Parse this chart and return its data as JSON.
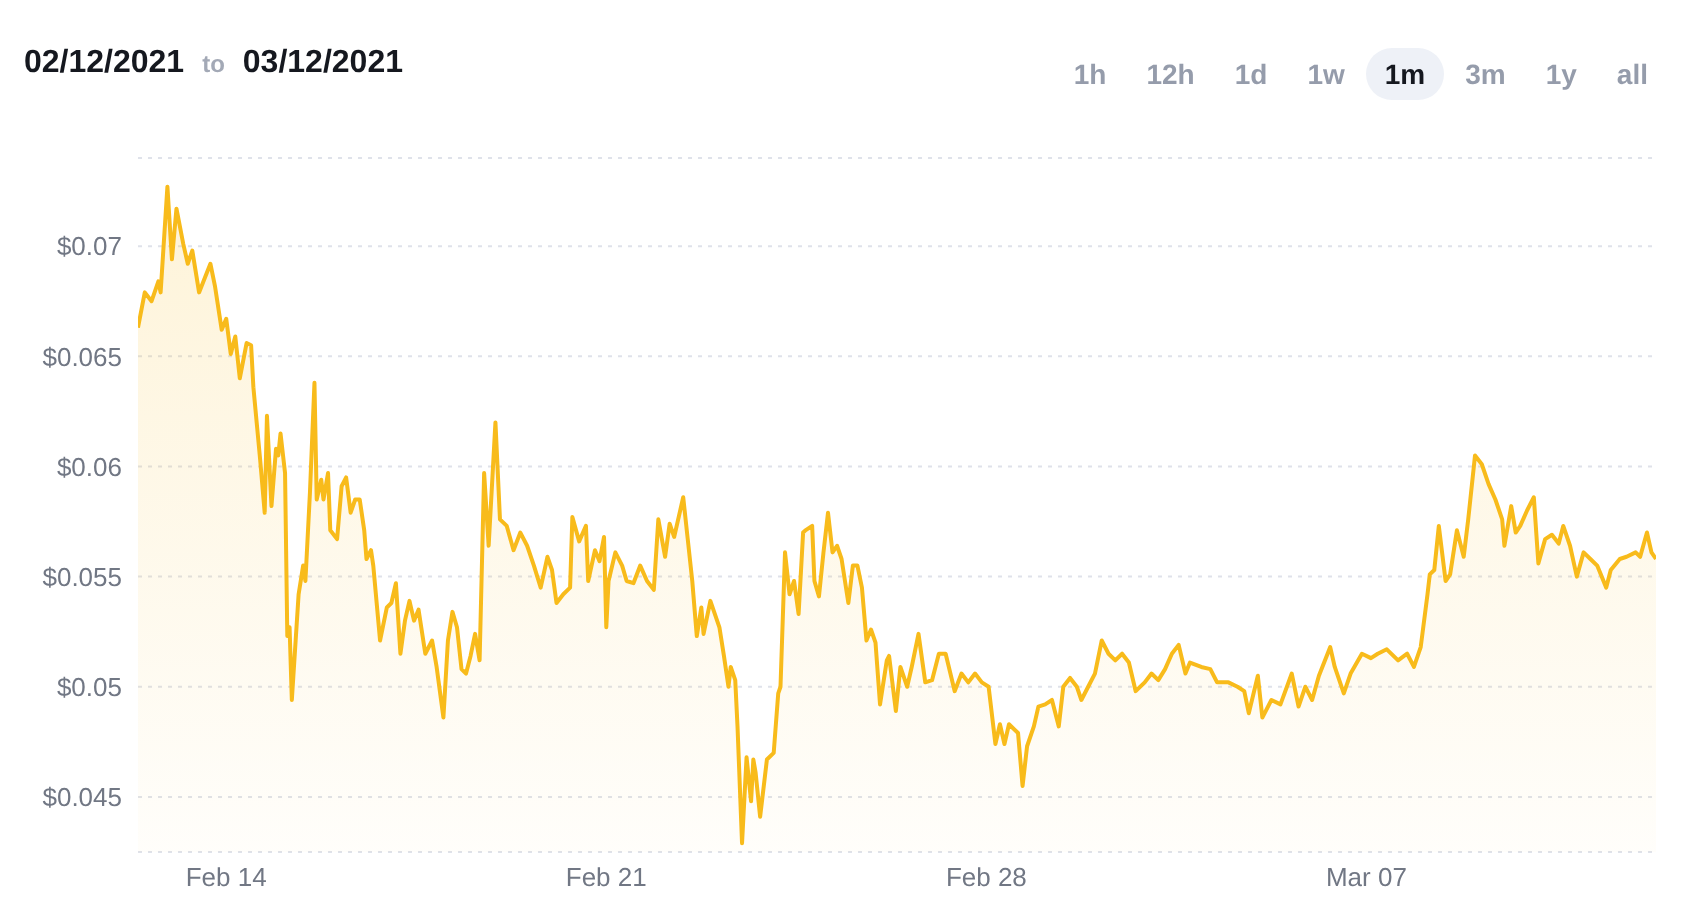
{
  "chart_data": {
    "type": "area",
    "title": "02/12/2021 to 03/12/2021",
    "annotations": [
      "1h",
      "12h",
      "1d",
      "1w",
      "1m",
      "3m",
      "1y",
      "all"
    ],
    "color": "#f8bb1b",
    "grid": "y",
    "xlim": [
      "2021-02-12T09:00",
      "2021-03-12T08:00"
    ],
    "xticks": [
      {
        "value": "2021-02-14",
        "label": "Feb 14"
      },
      {
        "value": "2021-02-21",
        "label": "Feb 21"
      },
      {
        "value": "2021-02-28",
        "label": "Feb 28"
      },
      {
        "value": "2021-03-07",
        "label": "Mar 07"
      }
    ],
    "ylim": [
      0.0425,
      0.074
    ],
    "yticks": [
      {
        "value": 0.045,
        "label": "$0.045"
      },
      {
        "value": 0.05,
        "label": "$0.05"
      },
      {
        "value": 0.055,
        "label": "$0.055"
      },
      {
        "value": 0.06,
        "label": "$0.06"
      },
      {
        "value": 0.065,
        "label": "$0.065"
      },
      {
        "value": 0.07,
        "label": "$0.07"
      }
    ],
    "x": [
      "2021-02-12T09:00",
      "2021-02-12T12:00",
      "2021-02-12T15:00",
      "2021-02-12T18:00",
      "2021-02-12T19:00",
      "2021-02-12T22:00",
      "2021-02-13T00:00",
      "2021-02-13T02:00",
      "2021-02-13T05:00",
      "2021-02-13T07:00",
      "2021-02-13T09:00",
      "2021-02-13T12:00",
      "2021-02-13T17:00",
      "2021-02-13T19:00",
      "2021-02-13T22:00",
      "2021-02-14T00:00",
      "2021-02-14T02:00",
      "2021-02-14T04:00",
      "2021-02-14T06:00",
      "2021-02-14T09:00",
      "2021-02-14T11:00",
      "2021-02-14T12:00",
      "2021-02-14T15:00",
      "2021-02-14T17:00",
      "2021-02-14T18:00",
      "2021-02-14T20:00",
      "2021-02-14T22:00",
      "2021-02-14T23:00",
      "2021-02-15T00:00",
      "2021-02-15T02:00",
      "2021-02-15T03:00",
      "2021-02-15T04:00",
      "2021-02-15T05:00",
      "2021-02-15T08:00",
      "2021-02-15T10:00",
      "2021-02-15T11:00",
      "2021-02-15T13:00",
      "2021-02-15T15:00",
      "2021-02-15T16:00",
      "2021-02-15T18:00",
      "2021-02-15T19:00",
      "2021-02-15T21:00",
      "2021-02-15T22:00",
      "2021-02-16T01:00",
      "2021-02-16T03:00",
      "2021-02-16T05:00",
      "2021-02-16T07:00",
      "2021-02-16T09:00",
      "2021-02-16T11:00",
      "2021-02-16T13:00",
      "2021-02-16T14:00",
      "2021-02-16T16:00",
      "2021-02-16T17:00",
      "2021-02-16T20:00",
      "2021-02-16T23:00",
      "2021-02-17T01:00",
      "2021-02-17T03:00",
      "2021-02-17T05:00",
      "2021-02-17T07:00",
      "2021-02-17T09:00",
      "2021-02-17T11:00",
      "2021-02-17T13:00",
      "2021-02-17T16:00",
      "2021-02-17T19:00",
      "2021-02-17T21:00",
      "2021-02-18T00:00",
      "2021-02-18T02:00",
      "2021-02-18T04:00",
      "2021-02-18T06:00",
      "2021-02-18T08:00",
      "2021-02-18T10:00",
      "2021-02-18T12:00",
      "2021-02-18T14:00",
      "2021-02-18T16:00",
      "2021-02-18T18:00",
      "2021-02-18T20:00",
      "2021-02-18T23:00",
      "2021-02-19T01:00",
      "2021-02-19T04:00",
      "2021-02-19T07:00",
      "2021-02-19T10:00",
      "2021-02-19T13:00",
      "2021-02-19T16:00",
      "2021-02-19T19:00",
      "2021-02-19T22:00",
      "2021-02-20T00:00",
      "2021-02-20T02:00",
      "2021-02-20T05:00",
      "2021-02-20T08:00",
      "2021-02-20T09:00",
      "2021-02-20T12:00",
      "2021-02-20T15:00",
      "2021-02-20T16:00",
      "2021-02-20T19:00",
      "2021-02-20T21:00",
      "2021-02-20T23:00",
      "2021-02-21T00:00",
      "2021-02-21T01:00",
      "2021-02-21T04:00",
      "2021-02-21T07:00",
      "2021-02-21T09:00",
      "2021-02-21T12:00",
      "2021-02-21T15:00",
      "2021-02-21T18:00",
      "2021-02-21T21:00",
      "2021-02-21T23:00",
      "2021-02-22T02:00",
      "2021-02-22T04:00",
      "2021-02-22T06:00",
      "2021-02-22T10:00",
      "2021-02-22T12:00",
      "2021-02-22T14:00",
      "2021-02-22T16:00",
      "2021-02-22T18:00",
      "2021-02-22T19:00",
      "2021-02-22T22:00",
      "2021-02-23T02:00",
      "2021-02-23T04:00",
      "2021-02-23T06:00",
      "2021-02-23T07:00",
      "2021-02-23T09:00",
      "2021-02-23T10:00",
      "2021-02-23T12:00",
      "2021-02-23T14:00",
      "2021-02-23T16:00",
      "2021-02-23T17:00",
      "2021-02-23T18:00",
      "2021-02-23T20:00",
      "2021-02-23T23:00",
      "2021-02-24T02:00",
      "2021-02-24T04:00",
      "2021-02-24T05:00",
      "2021-02-24T07:00",
      "2021-02-24T09:00",
      "2021-02-24T11:00",
      "2021-02-24T13:00",
      "2021-02-24T15:00",
      "2021-02-24T16:00",
      "2021-02-24T19:00",
      "2021-02-24T20:00",
      "2021-02-24T22:00",
      "2021-02-25T00:00",
      "2021-02-25T02:00",
      "2021-02-25T04:00",
      "2021-02-25T06:00",
      "2021-02-25T08:00",
      "2021-02-25T11:00",
      "2021-02-25T13:00",
      "2021-02-25T15:00",
      "2021-02-25T17:00",
      "2021-02-25T19:00",
      "2021-02-25T21:00",
      "2021-02-25T23:00",
      "2021-02-26T01:00",
      "2021-02-26T04:00",
      "2021-02-26T05:00",
      "2021-02-26T08:00",
      "2021-02-26T10:00",
      "2021-02-26T13:00",
      "2021-02-26T15:00",
      "2021-02-26T18:00",
      "2021-02-26T21:00",
      "2021-02-27T00:00",
      "2021-02-27T03:00",
      "2021-02-27T06:00",
      "2021-02-27T10:00",
      "2021-02-27T13:00",
      "2021-02-27T16:00",
      "2021-02-27T19:00",
      "2021-02-27T22:00",
      "2021-02-28T01:00",
      "2021-02-28T04:00",
      "2021-02-28T06:00",
      "2021-02-28T08:00",
      "2021-02-28T10:00",
      "2021-02-28T14:00",
      "2021-02-28T16:00",
      "2021-02-28T18:00",
      "2021-02-28T21:00",
      "2021-02-28T23:00",
      "2021-03-01T02:00",
      "2021-03-01T05:00",
      "2021-03-01T08:00",
      "2021-03-01T10:00",
      "2021-03-01T13:00",
      "2021-03-01T16:00",
      "2021-03-01T18:00",
      "2021-03-01T21:00",
      "2021-03-02T00:00",
      "2021-03-02T03:00",
      "2021-03-02T06:00",
      "2021-03-02T09:00",
      "2021-03-02T12:00",
      "2021-03-02T15:00",
      "2021-03-02T18:00",
      "2021-03-02T22:00",
      "2021-03-03T01:00",
      "2021-03-03T04:00",
      "2021-03-03T07:00",
      "2021-03-03T10:00",
      "2021-03-03T13:00",
      "2021-03-03T16:00",
      "2021-03-03T18:00",
      "2021-03-03T23:00",
      "2021-03-04T03:00",
      "2021-03-04T06:00",
      "2021-03-04T11:00",
      "2021-03-04T15:00",
      "2021-03-04T18:00",
      "2021-03-04T20:00",
      "2021-03-05T00:00",
      "2021-03-05T02:00",
      "2021-03-05T06:00",
      "2021-03-05T10:00",
      "2021-03-05T15:00",
      "2021-03-05T18:00",
      "2021-03-05T21:00",
      "2021-03-06T00:00",
      "2021-03-06T03:00",
      "2021-03-06T08:00",
      "2021-03-06T10:00",
      "2021-03-06T14:00",
      "2021-03-06T17:00",
      "2021-03-06T22:00",
      "2021-03-07T02:00",
      "2021-03-07T05:00",
      "2021-03-07T09:00",
      "2021-03-07T14:00",
      "2021-03-07T18:00",
      "2021-03-07T21:00",
      "2021-03-08T00:00",
      "2021-03-08T03:00",
      "2021-03-08T04:00",
      "2021-03-08T06:00",
      "2021-03-08T08:00",
      "2021-03-08T11:00",
      "2021-03-08T13:00",
      "2021-03-08T16:00",
      "2021-03-08T19:00",
      "2021-03-08T21:00",
      "2021-03-09T00:00",
      "2021-03-09T03:00",
      "2021-03-09T06:00",
      "2021-03-09T09:00",
      "2021-03-09T12:00",
      "2021-03-09T13:00",
      "2021-03-09T16:00",
      "2021-03-09T18:00",
      "2021-03-09T20:00",
      "2021-03-09T23:00",
      "2021-03-10T02:00",
      "2021-03-10T04:00",
      "2021-03-10T07:00",
      "2021-03-10T10:00",
      "2021-03-10T13:00",
      "2021-03-10T15:00",
      "2021-03-10T18:00",
      "2021-03-10T21:00",
      "2021-03-11T00:00",
      "2021-03-11T03:00",
      "2021-03-11T06:00",
      "2021-03-11T10:00",
      "2021-03-11T12:00",
      "2021-03-11T16:00",
      "2021-03-11T19:00",
      "2021-03-11T23:00",
      "2021-03-12T01:00",
      "2021-03-12T04:00",
      "2021-03-12T06:00",
      "2021-03-12T08:00"
    ],
    "values": [
      0.0663,
      0.0679,
      0.0675,
      0.0684,
      0.0679,
      0.0727,
      0.0694,
      0.0717,
      0.0701,
      0.0692,
      0.0698,
      0.0679,
      0.0692,
      0.0682,
      0.0662,
      0.0667,
      0.0651,
      0.0659,
      0.064,
      0.0656,
      0.0655,
      0.0636,
      0.0603,
      0.0579,
      0.0623,
      0.0582,
      0.0608,
      0.0605,
      0.0615,
      0.0597,
      0.0523,
      0.0527,
      0.0494,
      0.0542,
      0.0555,
      0.0548,
      0.0588,
      0.0638,
      0.0585,
      0.0594,
      0.0585,
      0.0597,
      0.0571,
      0.0567,
      0.0591,
      0.0595,
      0.0579,
      0.0585,
      0.0585,
      0.0571,
      0.0558,
      0.0562,
      0.0555,
      0.0521,
      0.0536,
      0.0538,
      0.0547,
      0.0515,
      0.053,
      0.0539,
      0.053,
      0.0535,
      0.0515,
      0.0521,
      0.0509,
      0.0486,
      0.0521,
      0.0534,
      0.0527,
      0.0508,
      0.0506,
      0.0514,
      0.0524,
      0.0512,
      0.0597,
      0.0564,
      0.062,
      0.0576,
      0.0573,
      0.0562,
      0.057,
      0.0564,
      0.0555,
      0.0545,
      0.0559,
      0.0553,
      0.0538,
      0.0542,
      0.0545,
      0.0577,
      0.0566,
      0.0573,
      0.0548,
      0.0562,
      0.0557,
      0.0568,
      0.0527,
      0.0548,
      0.0561,
      0.0555,
      0.0548,
      0.0547,
      0.0555,
      0.0548,
      0.0544,
      0.0576,
      0.0559,
      0.0574,
      0.0568,
      0.0586,
      0.0567,
      0.0548,
      0.0523,
      0.0536,
      0.0524,
      0.0539,
      0.0527,
      0.0514,
      0.05,
      0.0509,
      0.0503,
      0.0482,
      0.0429,
      0.0468,
      0.0448,
      0.0467,
      0.0461,
      0.0441,
      0.0467,
      0.047,
      0.0497,
      0.05,
      0.0561,
      0.0542,
      0.0548,
      0.0533,
      0.057,
      0.0571,
      0.0573,
      0.0548,
      0.0541,
      0.0561,
      0.0579,
      0.0561,
      0.0564,
      0.0558,
      0.0538,
      0.0555,
      0.0555,
      0.0545,
      0.0521,
      0.0526,
      0.052,
      0.0492,
      0.0512,
      0.0514,
      0.0489,
      0.0509,
      0.05,
      0.0509,
      0.0524,
      0.0502,
      0.0503,
      0.0515,
      0.0515,
      0.0498,
      0.0506,
      0.0502,
      0.0506,
      0.0502,
      0.05,
      0.0474,
      0.0483,
      0.0474,
      0.0483,
      0.0479,
      0.0455,
      0.0473,
      0.0482,
      0.0491,
      0.0492,
      0.0494,
      0.0482,
      0.05,
      0.0504,
      0.05,
      0.0494,
      0.05,
      0.0506,
      0.0521,
      0.0515,
      0.0512,
      0.0515,
      0.0511,
      0.0498,
      0.0502,
      0.0506,
      0.0503,
      0.0508,
      0.0515,
      0.0519,
      0.0506,
      0.0511,
      0.0509,
      0.0508,
      0.0502,
      0.0502,
      0.05,
      0.0498,
      0.0488,
      0.0505,
      0.0486,
      0.0494,
      0.0492,
      0.0506,
      0.0491,
      0.05,
      0.0494,
      0.0505,
      0.0518,
      0.0509,
      0.0497,
      0.0506,
      0.0515,
      0.0513,
      0.0515,
      0.0517,
      0.0512,
      0.0515,
      0.0509,
      0.0518,
      0.0542,
      0.0551,
      0.0553,
      0.0573,
      0.0548,
      0.0551,
      0.0571,
      0.0559,
      0.0576,
      0.0605,
      0.0601,
      0.0592,
      0.0585,
      0.0576,
      0.0564,
      0.0582,
      0.057,
      0.0573,
      0.058,
      0.0586,
      0.0556,
      0.0567,
      0.0569,
      0.0565,
      0.0573,
      0.0564,
      0.055,
      0.0561,
      0.0558,
      0.0555,
      0.0545,
      0.0553,
      0.0558,
      0.0559,
      0.0561,
      0.0559,
      0.057,
      0.0561,
      0.0558
    ]
  }
}
